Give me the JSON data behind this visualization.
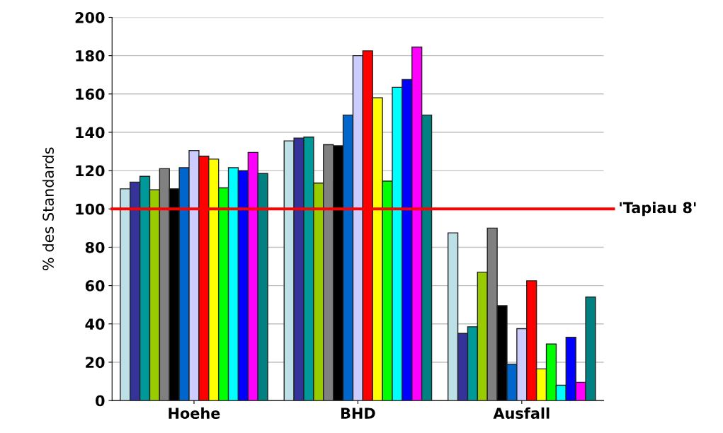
{
  "chart_data": {
    "type": "bar",
    "ylabel": "% des Standards",
    "categories": [
      "Hoehe",
      "BHD",
      "Ausfall"
    ],
    "series": [
      {
        "color": "#bde0e6",
        "values": [
          110.5,
          135.5,
          87.5
        ]
      },
      {
        "color": "#333399",
        "values": [
          114,
          137,
          35
        ]
      },
      {
        "color": "#009999",
        "values": [
          117,
          137.5,
          38.5
        ]
      },
      {
        "color": "#99cc00",
        "values": [
          110,
          113.5,
          67
        ]
      },
      {
        "color": "#808080",
        "values": [
          121,
          133.5,
          90
        ]
      },
      {
        "color": "#000000",
        "values": [
          110.5,
          133,
          49.5
        ]
      },
      {
        "color": "#0066cc",
        "values": [
          121.5,
          149,
          19
        ]
      },
      {
        "color": "#ccccff",
        "values": [
          130.5,
          180,
          37.5
        ]
      },
      {
        "color": "#ff0000",
        "values": [
          127.5,
          182.5,
          62.5
        ]
      },
      {
        "color": "#ffff00",
        "values": [
          126,
          158,
          16.5
        ]
      },
      {
        "color": "#00ff00",
        "values": [
          111,
          114.5,
          29.5
        ]
      },
      {
        "color": "#00ffff",
        "values": [
          121.5,
          163.5,
          8
        ]
      },
      {
        "color": "#0000ff",
        "values": [
          120,
          167.5,
          33
        ]
      },
      {
        "color": "#ff00ff",
        "values": [
          129.5,
          184.5,
          9.5
        ]
      },
      {
        "color": "#008080",
        "values": [
          118.5,
          149,
          54
        ]
      }
    ],
    "ylim": [
      0,
      200
    ],
    "yticks": [
      0,
      20,
      40,
      60,
      80,
      100,
      120,
      140,
      160,
      180,
      200
    ],
    "grid": "y",
    "ref_lines": [
      {
        "axis": "y",
        "value": 100,
        "label": "'Tapiau 8'",
        "color": "#ff0000"
      }
    ]
  }
}
